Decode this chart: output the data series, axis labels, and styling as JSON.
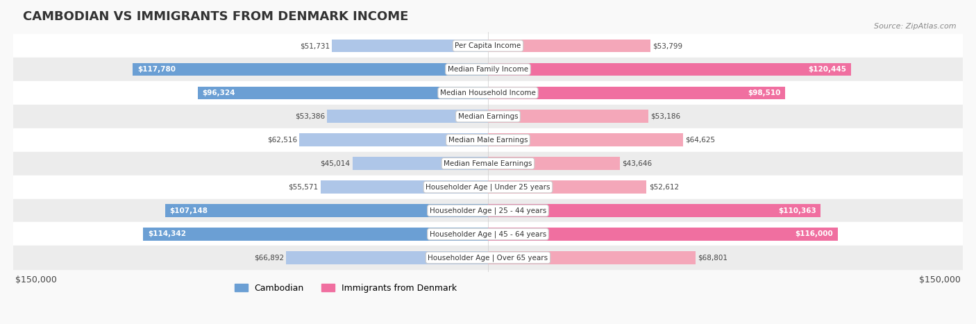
{
  "title": "CAMBODIAN VS IMMIGRANTS FROM DENMARK INCOME",
  "source": "Source: ZipAtlas.com",
  "categories": [
    "Per Capita Income",
    "Median Family Income",
    "Median Household Income",
    "Median Earnings",
    "Median Male Earnings",
    "Median Female Earnings",
    "Householder Age | Under 25 years",
    "Householder Age | 25 - 44 years",
    "Householder Age | 45 - 64 years",
    "Householder Age | Over 65 years"
  ],
  "cambodian_values": [
    51731,
    117780,
    96324,
    53386,
    62516,
    45014,
    55571,
    107148,
    114342,
    66892
  ],
  "denmark_values": [
    53799,
    120445,
    98510,
    53186,
    64625,
    43646,
    52612,
    110363,
    116000,
    68801
  ],
  "cambodian_labels": [
    "$51,731",
    "$117,780",
    "$96,324",
    "$53,386",
    "$62,516",
    "$45,014",
    "$55,571",
    "$107,148",
    "$114,342",
    "$66,892"
  ],
  "denmark_labels": [
    "$53,799",
    "$120,445",
    "$98,510",
    "$53,186",
    "$64,625",
    "$43,646",
    "$52,612",
    "$110,363",
    "$116,000",
    "$68,801"
  ],
  "max_value": 150000,
  "cambodian_color_light": "#aec6e8",
  "cambodian_color_dark": "#6b9fd4",
  "denmark_color_light": "#f4a7b9",
  "denmark_color_dark": "#f06fa0",
  "label_dark_threshold": 90000,
  "bar_height": 0.55,
  "bg_color": "#f5f5f5",
  "row_bg_color": "#ffffff",
  "alt_row_bg_color": "#f0f0f0"
}
